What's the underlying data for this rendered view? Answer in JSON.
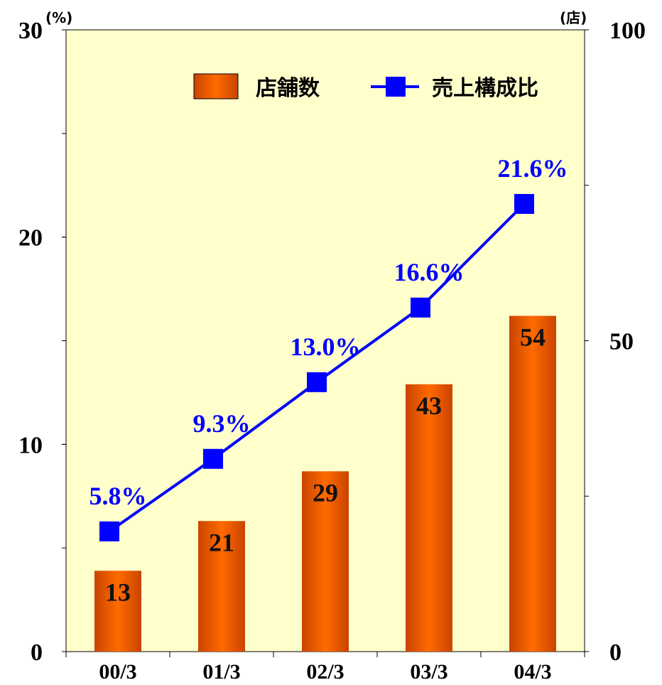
{
  "chart_data": {
    "type": "bar",
    "categories": [
      "00/3",
      "01/3",
      "02/3",
      "03/3",
      "04/3"
    ],
    "series": [
      {
        "name": "店舗数",
        "type": "bar",
        "axis": "right",
        "values": [
          13,
          21,
          29,
          43,
          54
        ],
        "labels": [
          "13",
          "21",
          "29",
          "43",
          "54"
        ],
        "color": "#ff6a00"
      },
      {
        "name": "売上構成比",
        "type": "line",
        "axis": "left",
        "values": [
          5.8,
          9.3,
          13.0,
          16.6,
          21.6
        ],
        "labels": [
          "5.8%",
          "9.3%",
          "13.0%",
          "16.6%",
          "21.6%"
        ],
        "color": "#0000ff"
      }
    ],
    "y_left": {
      "unit": "(%)",
      "range": [
        0,
        30
      ],
      "ticks": [
        "0",
        "10",
        "20",
        "30"
      ],
      "minor_step": 5
    },
    "y_right": {
      "unit": "(店)",
      "range": [
        0,
        100
      ],
      "ticks": [
        "0",
        "50",
        "100"
      ],
      "minor_step": 25
    },
    "plot_background": "#ffffcc",
    "grid": false,
    "legend_position": "top-right"
  }
}
